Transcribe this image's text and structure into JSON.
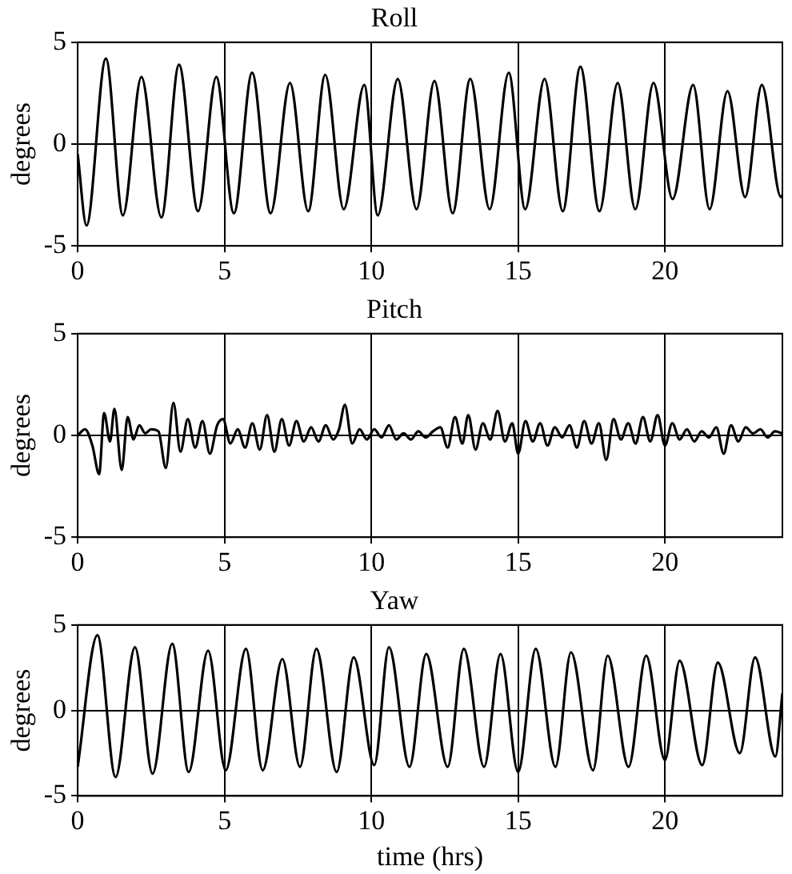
{
  "chart_data": [
    {
      "type": "line",
      "title": "Roll",
      "ylabel": "degrees",
      "xlim": [
        0,
        24
      ],
      "xticks": [
        0,
        5,
        10,
        15,
        20
      ],
      "ylim": [
        -5,
        5
      ],
      "yticks": [
        -5,
        0,
        5
      ],
      "grid": true,
      "line_style": "solid",
      "marker": "none",
      "series": [
        {
          "color": "#000000",
          "x": [
            0,
            0.3,
            0.96,
            1.54,
            2.17,
            2.85,
            3.45,
            4.1,
            4.72,
            5.32,
            5.94,
            6.57,
            7.23,
            7.85,
            8.43,
            9.06,
            9.76,
            10.22,
            10.9,
            11.54,
            12.15,
            12.77,
            13.37,
            14.03,
            14.68,
            15.24,
            15.9,
            16.52,
            17.12,
            17.77,
            18.39,
            18.99,
            19.61,
            20.26,
            20.96,
            21.52,
            22.13,
            22.73,
            23.3,
            23.95,
            24
          ],
          "values": [
            -0.5,
            -4.0,
            4.2,
            -3.5,
            3.3,
            -3.6,
            3.9,
            -3.3,
            3.3,
            -3.4,
            3.5,
            -3.4,
            3.0,
            -3.3,
            3.4,
            -3.2,
            2.9,
            -3.5,
            3.2,
            -3.2,
            3.1,
            -3.4,
            3.2,
            -3.2,
            3.5,
            -3.2,
            3.2,
            -3.3,
            3.8,
            -3.3,
            3.0,
            -3.2,
            3.0,
            -2.7,
            2.9,
            -3.2,
            2.6,
            -2.6,
            2.9,
            -2.6,
            -2.5
          ]
        }
      ]
    },
    {
      "type": "line",
      "title": "Pitch",
      "ylabel": "degrees",
      "xlim": [
        0,
        24
      ],
      "xticks": [
        0,
        5,
        10,
        15,
        20
      ],
      "ylim": [
        -5,
        5
      ],
      "yticks": [
        -5,
        0,
        5
      ],
      "grid": true,
      "line_style": "solid",
      "marker": "none",
      "series": [
        {
          "color": "#000000",
          "x": [
            0,
            0.25,
            0.5,
            0.73,
            0.9,
            1.1,
            1.25,
            1.5,
            1.7,
            1.9,
            2.1,
            2.3,
            2.5,
            2.75,
            3.0,
            3.26,
            3.5,
            3.75,
            4.0,
            4.25,
            4.5,
            4.75,
            4.95,
            5.2,
            5.45,
            5.7,
            5.95,
            6.2,
            6.45,
            6.7,
            6.95,
            7.2,
            7.45,
            7.7,
            7.95,
            8.2,
            8.45,
            8.7,
            8.9,
            9.1,
            9.35,
            9.6,
            9.85,
            10.1,
            10.35,
            10.6,
            10.85,
            11.1,
            11.35,
            11.6,
            11.85,
            12.1,
            12.35,
            12.6,
            12.85,
            13.1,
            13.3,
            13.55,
            13.8,
            14.05,
            14.3,
            14.55,
            14.8,
            15.0,
            15.25,
            15.5,
            15.75,
            16.0,
            16.25,
            16.5,
            16.75,
            17.0,
            17.25,
            17.5,
            17.75,
            18.0,
            18.25,
            18.5,
            18.75,
            19.0,
            19.25,
            19.5,
            19.75,
            20.0,
            20.25,
            20.5,
            20.75,
            21.0,
            21.25,
            21.5,
            21.75,
            22.0,
            22.25,
            22.5,
            22.75,
            23.0,
            23.25,
            23.5,
            23.75,
            24
          ],
          "values": [
            0,
            0.3,
            -0.5,
            -1.9,
            1.1,
            -0.3,
            1.3,
            -1.7,
            0.9,
            -0.2,
            0.5,
            0.1,
            0.3,
            0.2,
            -1.6,
            1.6,
            -0.8,
            0.8,
            -0.6,
            0.7,
            -0.9,
            0.5,
            0.8,
            -0.4,
            0.3,
            -0.6,
            0.6,
            -0.7,
            1.0,
            -0.8,
            0.8,
            -0.5,
            0.7,
            -0.3,
            0.4,
            -0.3,
            0.5,
            -0.2,
            0.3,
            1.5,
            -0.4,
            0.3,
            -0.2,
            0.3,
            -0.1,
            0.5,
            -0.2,
            0.1,
            -0.2,
            0.2,
            -0.1,
            0.2,
            0.4,
            -0.6,
            0.9,
            -0.4,
            1.0,
            -0.7,
            0.6,
            -0.2,
            1.2,
            -0.3,
            0.6,
            -0.9,
            0.7,
            -0.3,
            0.6,
            -0.5,
            0.4,
            -0.1,
            0.5,
            -0.6,
            0.7,
            -0.4,
            0.6,
            -1.2,
            0.8,
            -0.2,
            0.6,
            -0.4,
            0.9,
            -0.3,
            1.0,
            -0.5,
            0.6,
            -0.2,
            0.3,
            -0.3,
            0.2,
            -0.1,
            0.4,
            -0.9,
            0.5,
            -0.3,
            0.4,
            0.1,
            0.3,
            -0.1,
            0.2,
            0.1
          ]
        }
      ]
    },
    {
      "type": "line",
      "title": "Yaw",
      "xlabel": "time (hrs)",
      "ylabel": "degrees",
      "xlim": [
        0,
        24
      ],
      "xticks": [
        0,
        5,
        10,
        15,
        20
      ],
      "ylim": [
        -5,
        5
      ],
      "yticks": [
        -5,
        0,
        5
      ],
      "grid": true,
      "line_style": "solid",
      "marker": "none",
      "series": [
        {
          "color": "#000000",
          "x": [
            0,
            0.67,
            1.29,
            1.95,
            2.55,
            3.22,
            3.78,
            4.44,
            5.04,
            5.73,
            6.3,
            6.97,
            7.57,
            8.13,
            8.82,
            9.4,
            10.1,
            10.6,
            11.3,
            11.87,
            12.6,
            13.15,
            13.84,
            14.4,
            15.0,
            15.6,
            16.27,
            16.8,
            17.55,
            18.05,
            18.76,
            19.36,
            20.0,
            20.5,
            21.27,
            21.8,
            22.55,
            23.07,
            23.76,
            24
          ],
          "values": [
            -3.3,
            4.4,
            -3.9,
            3.7,
            -3.7,
            3.9,
            -3.6,
            3.5,
            -3.5,
            3.6,
            -3.5,
            3.0,
            -3.3,
            3.6,
            -3.6,
            3.1,
            -3.2,
            3.7,
            -3.3,
            3.3,
            -3.3,
            3.6,
            -3.3,
            3.3,
            -3.6,
            3.6,
            -3.3,
            3.4,
            -3.5,
            3.2,
            -3.3,
            3.2,
            -2.9,
            2.9,
            -3.2,
            2.8,
            -2.5,
            3.1,
            -2.7,
            1.0
          ]
        }
      ]
    }
  ]
}
